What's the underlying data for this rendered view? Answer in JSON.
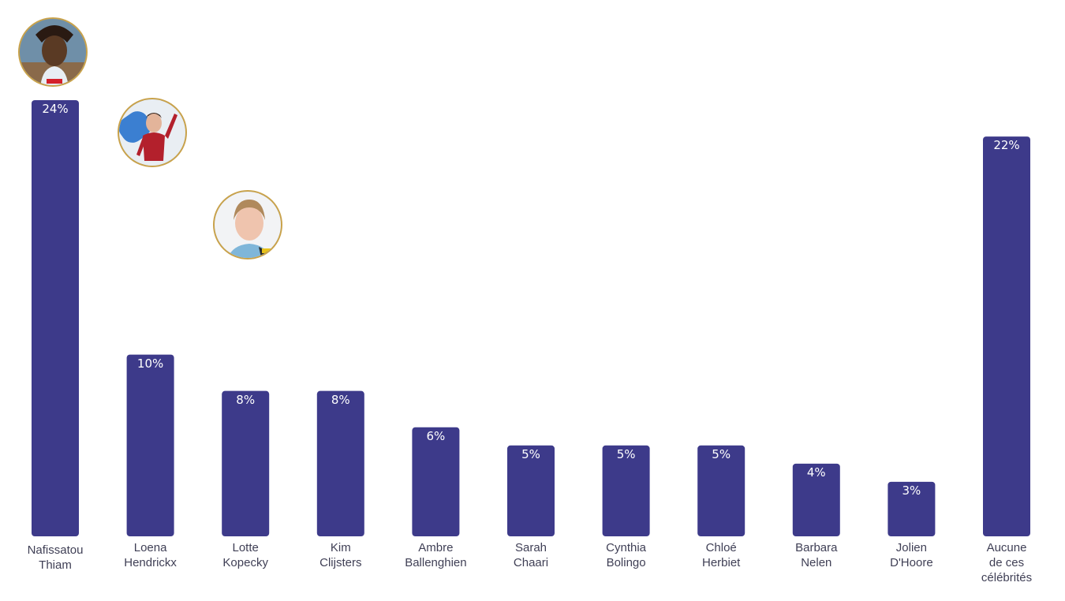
{
  "chart_data": {
    "type": "bar",
    "categories": [
      "Nafissatou Thiam",
      "Loena Hendrickx",
      "Lotte Kopecky",
      "Kim Clijsters",
      "Ambre Ballenghien",
      "Sarah Chaari",
      "Cynthia Bolingo",
      "Chloé Herbiet",
      "Barbara Nelen",
      "Jolien D'Hoore",
      "Aucune de ces célébrités"
    ],
    "category_lines": [
      [
        "Nafissatou",
        "Thiam"
      ],
      [
        "Loena",
        "Hendrickx"
      ],
      [
        "Lotte",
        "Kopecky"
      ],
      [
        "Kim",
        "Clijsters"
      ],
      [
        "Ambre",
        "Ballenghien"
      ],
      [
        "Sarah",
        "Chaari"
      ],
      [
        "Cynthia",
        "Bolingo"
      ],
      [
        "Chloé",
        "Herbiet"
      ],
      [
        "Barbara",
        "Nelen"
      ],
      [
        "Jolien",
        "D'Hoore"
      ],
      [
        "Aucune",
        "de ces",
        "célébrités"
      ]
    ],
    "values": [
      24,
      10,
      8,
      8,
      6,
      5,
      5,
      5,
      4,
      3,
      22
    ],
    "value_labels": [
      "24%",
      "10%",
      "8%",
      "8%",
      "6%",
      "5%",
      "5%",
      "5%",
      "4%",
      "3%",
      "22%"
    ],
    "unit": "%",
    "bar_color": "#3d3a8a",
    "avatar_ring_color": "#c9a24a",
    "avatars_for": [
      "Nafissatou Thiam",
      "Loena Hendrickx",
      "Lotte Kopecky"
    ]
  }
}
